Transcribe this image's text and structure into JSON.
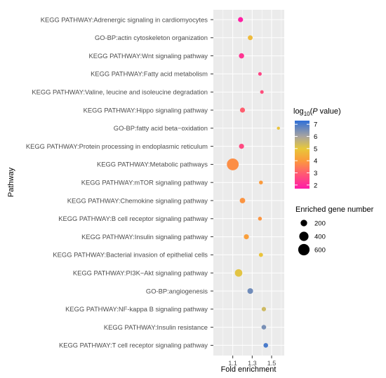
{
  "chart_data": {
    "type": "scatter",
    "xlabel": "Fold enrichment",
    "ylabel": "Pathway",
    "xlim": [
      0.9,
      1.63
    ],
    "x_ticks": [
      1.1,
      1.3,
      1.5
    ],
    "grid": true,
    "categories": [
      "KEGG PATHWAY:Adrenergic signaling in cardiomyocytes",
      "GO-BP:actin cytoskeleton organization",
      "KEGG PATHWAY:Wnt signaling pathway",
      "KEGG PATHWAY:Fatty acid metabolism",
      "KEGG PATHWAY:Valine, leucine and isoleucine degradation",
      "KEGG PATHWAY:Hippo signaling pathway",
      "GO-BP:fatty acid beta−oxidation",
      "KEGG PATHWAY:Protein processing in endoplasmic reticulum",
      "KEGG PATHWAY:Metabolic pathways",
      "KEGG PATHWAY:mTOR signaling pathway",
      "KEGG PATHWAY:Chemokine signaling pathway",
      "KEGG PATHWAY:B cell receptor signaling pathway",
      "KEGG PATHWAY:Insulin signaling pathway",
      "KEGG PATHWAY:Bacterial invasion of epithelial cells",
      "KEGG PATHWAY:PI3K−Akt signaling pathway",
      "GO-BP:angiogenesis",
      "KEGG PATHWAY:NF-kappa B signaling pathway",
      "KEGG PATHWAY:Insulin resistance",
      "KEGG PATHWAY:T cell receptor signaling pathway"
    ],
    "points": [
      {
        "fold": 1.18,
        "logp": 1.8,
        "genes": 120
      },
      {
        "fold": 1.28,
        "logp": 4.7,
        "genes": 110
      },
      {
        "fold": 1.19,
        "logp": 2.2,
        "genes": 130
      },
      {
        "fold": 1.38,
        "logp": 2.5,
        "genes": 60
      },
      {
        "fold": 1.4,
        "logp": 2.7,
        "genes": 60
      },
      {
        "fold": 1.2,
        "logp": 3.0,
        "genes": 120
      },
      {
        "fold": 1.57,
        "logp": 4.9,
        "genes": 45
      },
      {
        "fold": 1.19,
        "logp": 2.6,
        "genes": 120
      },
      {
        "fold": 1.1,
        "logp": 3.8,
        "genes": 650
      },
      {
        "fold": 1.39,
        "logp": 4.0,
        "genes": 70
      },
      {
        "fold": 1.2,
        "logp": 3.9,
        "genes": 140
      },
      {
        "fold": 1.38,
        "logp": 3.9,
        "genes": 70
      },
      {
        "fold": 1.24,
        "logp": 4.1,
        "genes": 120
      },
      {
        "fold": 1.39,
        "logp": 4.9,
        "genes": 80
      },
      {
        "fold": 1.16,
        "logp": 5.1,
        "genes": 260
      },
      {
        "fold": 1.28,
        "logp": 6.6,
        "genes": 150
      },
      {
        "fold": 1.42,
        "logp": 5.4,
        "genes": 90
      },
      {
        "fold": 1.42,
        "logp": 6.5,
        "genes": 100
      },
      {
        "fold": 1.44,
        "logp": 7.0,
        "genes": 100
      }
    ],
    "legend_color": {
      "title_prefix": "log",
      "title_sub": "10",
      "title_open": "(",
      "title_var": "P",
      "title_rest": " value)",
      "ticks": [
        2,
        3,
        4,
        5,
        6,
        7
      ],
      "range": [
        1.7,
        7.3
      ],
      "gradient": [
        {
          "v": 1.7,
          "c": "#ff1aa8"
        },
        {
          "v": 3.0,
          "c": "#ff5e6f"
        },
        {
          "v": 4.0,
          "c": "#fb9a3c"
        },
        {
          "v": 5.0,
          "c": "#e8c83a"
        },
        {
          "v": 6.0,
          "c": "#a8a4a0"
        },
        {
          "v": 7.3,
          "c": "#2e6fd8"
        }
      ]
    },
    "legend_size": {
      "title": "Enriched gene number",
      "values": [
        200,
        400,
        600
      ]
    },
    "colors": {
      "panel_bg": "#ebebeb",
      "grid": "#ffffff",
      "tick_mark": "#333333"
    }
  }
}
